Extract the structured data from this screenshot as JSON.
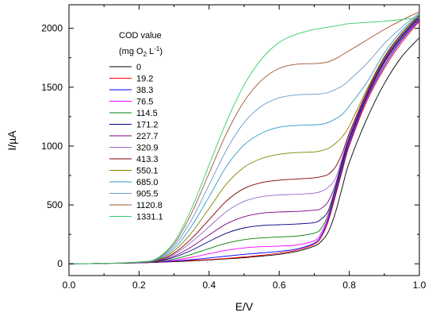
{
  "chart_data": {
    "type": "line",
    "xlabel": "E/V",
    "ylabel": "I/µA",
    "xlim": [
      0.0,
      1.0
    ],
    "ylim": [
      -100,
      2200
    ],
    "x_ticks": [
      0.0,
      0.2,
      0.4,
      0.6,
      0.8,
      1.0
    ],
    "x_tick_labels": [
      "0.0",
      "0.2",
      "0.4",
      "0.6",
      "0.8",
      "1.0"
    ],
    "y_ticks": [
      0,
      500,
      1000,
      1500,
      2000
    ],
    "y_tick_labels": [
      "0",
      "500",
      "1000",
      "1500",
      "2000"
    ],
    "grid": false,
    "legend": {
      "placement": "top-left",
      "title_line1": "COD value",
      "title_line2": {
        "pre": "(mg O",
        "sub": "2",
        "mid": " L",
        "sup": "-1",
        "post": ")"
      }
    },
    "x": [
      0.0,
      0.1,
      0.2,
      0.25,
      0.3,
      0.35,
      0.4,
      0.45,
      0.5,
      0.55,
      0.6,
      0.65,
      0.7,
      0.72,
      0.74,
      0.76,
      0.78,
      0.8,
      0.85,
      0.9,
      0.95,
      1.0
    ],
    "series": [
      {
        "name": "0",
        "color": "#000000",
        "values": [
          0,
          3,
          8,
          12,
          18,
          25,
          33,
          42,
          52,
          65,
          80,
          105,
          150,
          190,
          270,
          430,
          650,
          860,
          1230,
          1530,
          1760,
          1920
        ]
      },
      {
        "name": "19.2",
        "color": "#ff0000",
        "values": [
          0,
          3,
          8,
          13,
          20,
          28,
          36,
          46,
          58,
          72,
          90,
          115,
          165,
          225,
          360,
          570,
          790,
          1000,
          1380,
          1660,
          1880,
          2060
        ]
      },
      {
        "name": "38.3",
        "color": "#0000ff",
        "values": [
          0,
          3,
          8,
          14,
          23,
          35,
          50,
          65,
          80,
          92,
          105,
          125,
          175,
          240,
          380,
          590,
          810,
          1020,
          1400,
          1680,
          1900,
          2070
        ]
      },
      {
        "name": "76.5",
        "color": "#ff00ff",
        "values": [
          0,
          3,
          9,
          15,
          30,
          55,
          85,
          115,
          135,
          145,
          150,
          160,
          195,
          260,
          400,
          610,
          830,
          1040,
          1410,
          1700,
          1910,
          2080
        ]
      },
      {
        "name": "114.5",
        "color": "#008000",
        "values": [
          0,
          3,
          9,
          17,
          40,
          80,
          130,
          175,
          205,
          220,
          228,
          235,
          260,
          300,
          420,
          620,
          840,
          1050,
          1420,
          1710,
          1920,
          2090
        ]
      },
      {
        "name": "171.2",
        "color": "#000080",
        "values": [
          0,
          3,
          10,
          20,
          55,
          115,
          190,
          260,
          305,
          325,
          332,
          338,
          350,
          380,
          450,
          640,
          860,
          1060,
          1430,
          1720,
          1930,
          2095
        ]
      },
      {
        "name": "227.7",
        "color": "#800080",
        "values": [
          0,
          3,
          10,
          22,
          65,
          145,
          245,
          340,
          400,
          430,
          440,
          445,
          455,
          470,
          530,
          670,
          880,
          1080,
          1440,
          1730,
          1940,
          2100
        ]
      },
      {
        "name": "320.9",
        "color": "#9966cc",
        "values": [
          0,
          3,
          10,
          24,
          80,
          185,
          315,
          445,
          530,
          570,
          585,
          590,
          600,
          615,
          650,
          720,
          900,
          1090,
          1450,
          1740,
          1945,
          2105
        ]
      },
      {
        "name": "413.3",
        "color": "#800000",
        "values": [
          0,
          3,
          11,
          26,
          90,
          215,
          375,
          535,
          640,
          690,
          710,
          720,
          730,
          740,
          760,
          820,
          940,
          1110,
          1460,
          1750,
          1955,
          2110
        ]
      },
      {
        "name": "550.1",
        "color": "#808000",
        "values": [
          0,
          3,
          12,
          30,
          110,
          265,
          470,
          680,
          820,
          895,
          930,
          945,
          950,
          960,
          980,
          1020,
          1080,
          1170,
          1480,
          1760,
          1960,
          2115
        ]
      },
      {
        "name": "685.0",
        "color": "#3399cc",
        "values": [
          0,
          3,
          13,
          34,
          130,
          320,
          570,
          830,
          1010,
          1110,
          1160,
          1175,
          1180,
          1185,
          1200,
          1230,
          1270,
          1340,
          1540,
          1790,
          1980,
          2120
        ]
      },
      {
        "name": "905.5",
        "color": "#6699cc",
        "values": [
          0,
          3,
          14,
          38,
          150,
          375,
          670,
          970,
          1200,
          1340,
          1410,
          1435,
          1440,
          1445,
          1455,
          1480,
          1510,
          1560,
          1700,
          1870,
          2010,
          2130
        ]
      },
      {
        "name": "1120.8",
        "color": "#a0522d",
        "values": [
          0,
          3,
          15,
          42,
          170,
          430,
          770,
          1110,
          1380,
          1560,
          1660,
          1695,
          1700,
          1705,
          1715,
          1740,
          1775,
          1810,
          1900,
          1990,
          2070,
          2140
        ]
      },
      {
        "name": "1331.1",
        "color": "#33cc66",
        "values": [
          0,
          3,
          16,
          45,
          185,
          470,
          840,
          1210,
          1520,
          1740,
          1880,
          1950,
          1990,
          2000,
          2010,
          2020,
          2030,
          2040,
          2050,
          2060,
          2075,
          2090
        ]
      }
    ]
  }
}
